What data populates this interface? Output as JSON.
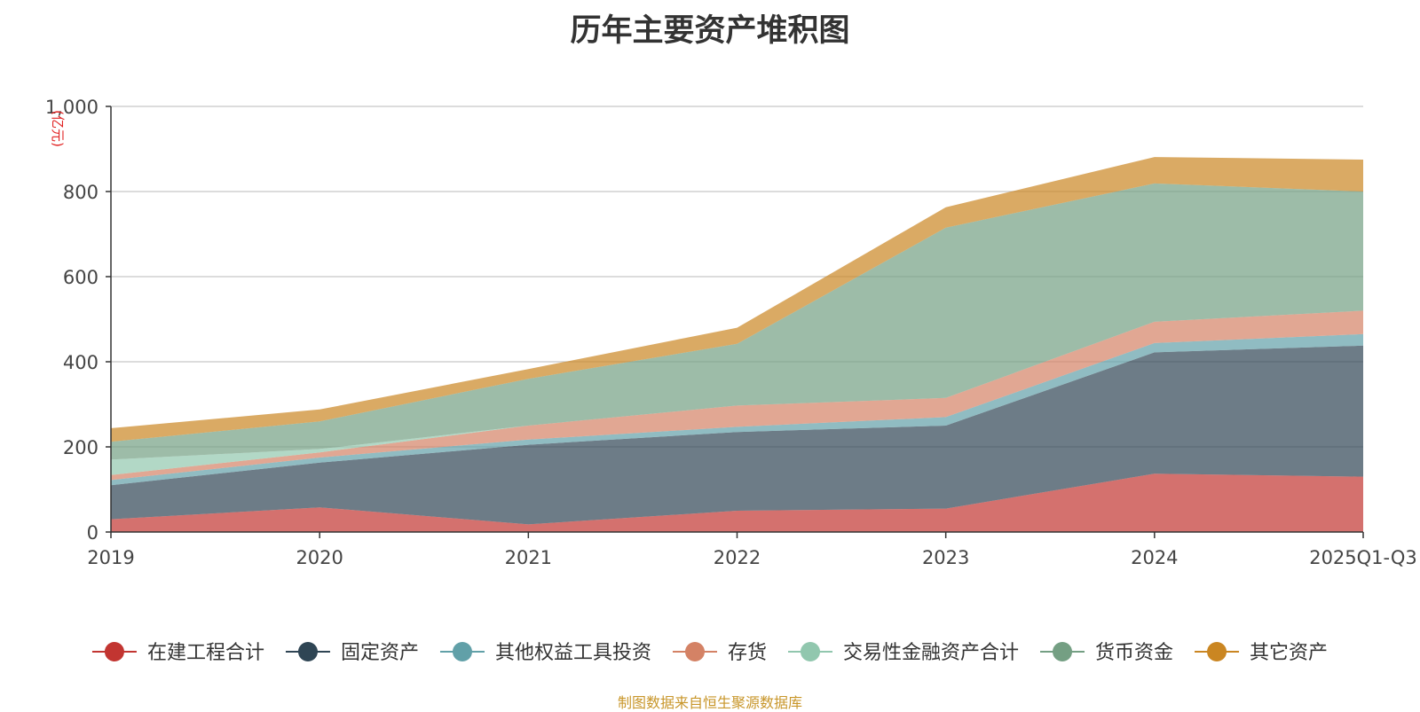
{
  "source_note": "制图数据来自恒生聚源数据库",
  "chart_data": {
    "type": "area",
    "stacked": true,
    "title": "历年主要资产堆积图",
    "ylabel": "(亿元)",
    "xlabel": "",
    "categories": [
      "2019",
      "2020",
      "2021",
      "2022",
      "2023",
      "2024",
      "2025Q1-Q3"
    ],
    "ylim": [
      0,
      1000
    ],
    "yticks": [
      0,
      200,
      400,
      600,
      800,
      1000
    ],
    "ytick_labels": [
      "0",
      "200",
      "400",
      "600",
      "800",
      "1,000"
    ],
    "grid": true,
    "legend_position": "bottom",
    "series": [
      {
        "name": "在建工程合计",
        "color": "#c23531",
        "values": [
          30,
          58,
          18,
          50,
          55,
          137,
          130
        ]
      },
      {
        "name": "固定资产",
        "color": "#2f4554",
        "values": [
          80,
          105,
          187,
          185,
          195,
          285,
          308
        ]
      },
      {
        "name": "其他权益工具投资",
        "color": "#61a0a8",
        "values": [
          12,
          12,
          12,
          12,
          20,
          22,
          27
        ]
      },
      {
        "name": "存货",
        "color": "#d48265",
        "values": [
          12,
          12,
          33,
          50,
          45,
          50,
          55
        ]
      },
      {
        "name": "交易性金融资产合计",
        "color": "#91c7ae",
        "values": [
          36,
          8,
          0,
          0,
          0,
          0,
          0
        ]
      },
      {
        "name": "货币资金",
        "color": "#749f83",
        "values": [
          42,
          65,
          110,
          145,
          400,
          325,
          280
        ]
      },
      {
        "name": "其它资产",
        "color": "#ca8622",
        "values": [
          32,
          28,
          23,
          38,
          48,
          62,
          75
        ]
      }
    ]
  }
}
